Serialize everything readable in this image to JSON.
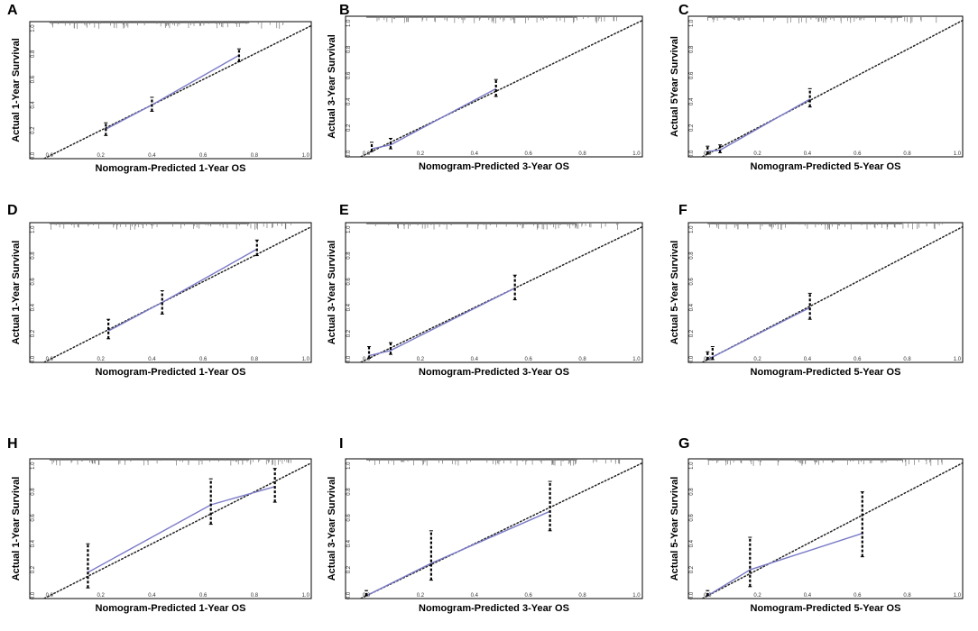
{
  "figure": {
    "description": "Calibration plots of nomogram-predicted vs actual overall survival"
  },
  "colors": {
    "calibration_line": "#7b7bc8",
    "ideal_line": "#222222",
    "error_bar": "#000000",
    "rug": "#777777",
    "axis": "#000000"
  },
  "chart_data": [
    {
      "type": "line",
      "panel": "A",
      "title": "",
      "xlabel": "Nomogram-Predicted 1-Year OS",
      "ylabel": "Actual 1-Year Survival",
      "xlim": [
        0,
        1
      ],
      "ylim": [
        0,
        1
      ],
      "xticks": [
        "0.0",
        "0.2",
        "0.4",
        "0.6",
        "0.8",
        "1.0"
      ],
      "yticks": [
        "0.0",
        "0.2",
        "0.4",
        "0.6",
        "0.8",
        "1.0"
      ],
      "series": [
        {
          "name": "Calibration",
          "x": [
            0.22,
            0.4,
            0.74
          ],
          "y": [
            0.21,
            0.4,
            0.79
          ]
        },
        {
          "name": "Ideal",
          "x": [
            0,
            1
          ],
          "y": [
            0,
            1
          ]
        }
      ],
      "error_bars": [
        {
          "x": 0.22,
          "low": 0.16,
          "high": 0.26
        },
        {
          "x": 0.4,
          "low": 0.35,
          "high": 0.46
        },
        {
          "x": 0.74,
          "low": 0.74,
          "high": 0.84
        }
      ]
    },
    {
      "type": "line",
      "panel": "B",
      "title": "",
      "xlabel": "Nomogram-Predicted 3-Year OS",
      "ylabel": "Actual 3-Year Survival",
      "xlim": [
        0,
        1
      ],
      "ylim": [
        0,
        1
      ],
      "xticks": [
        "0.0",
        "0.2",
        "0.4",
        "0.6",
        "0.8",
        "1.0"
      ],
      "yticks": [
        "0.0",
        "0.2",
        "0.4",
        "0.6",
        "0.8",
        "1.0"
      ],
      "series": [
        {
          "name": "Calibration",
          "x": [
            0.02,
            0.09,
            0.48
          ],
          "y": [
            0.04,
            0.07,
            0.5
          ]
        },
        {
          "name": "Ideal",
          "x": [
            0,
            1
          ],
          "y": [
            0,
            1
          ]
        }
      ],
      "error_bars": [
        {
          "x": 0.02,
          "low": 0.02,
          "high": 0.09
        },
        {
          "x": 0.09,
          "low": 0.04,
          "high": 0.12
        },
        {
          "x": 0.48,
          "low": 0.44,
          "high": 0.57
        }
      ]
    },
    {
      "type": "line",
      "panel": "C",
      "title": "",
      "xlabel": "Nomogram-Predicted 5-Year OS",
      "ylabel": "Actual 5Year Survival",
      "xlim": [
        0,
        1
      ],
      "ylim": [
        0,
        1
      ],
      "xticks": [
        "0.0",
        "0.2",
        "0.4",
        "0.6",
        "0.8",
        "1.0"
      ],
      "yticks": [
        "0.0",
        "0.2",
        "0.4",
        "0.6",
        "0.8",
        "1.0"
      ],
      "series": [
        {
          "name": "Calibration",
          "x": [
            0.0,
            0.05,
            0.41
          ],
          "y": [
            0.02,
            0.03,
            0.42
          ]
        },
        {
          "name": "Ideal",
          "x": [
            0,
            1
          ],
          "y": [
            0,
            1
          ]
        }
      ],
      "error_bars": [
        {
          "x": 0.0,
          "low": 0.0,
          "high": 0.06
        },
        {
          "x": 0.05,
          "low": 0.01,
          "high": 0.07
        },
        {
          "x": 0.41,
          "low": 0.36,
          "high": 0.5
        }
      ]
    },
    {
      "type": "line",
      "panel": "D",
      "title": "",
      "xlabel": "Nomogram-Predicted 1-Year OS",
      "ylabel": "Actual 1-Year Survival",
      "xlim": [
        0,
        1
      ],
      "ylim": [
        0,
        1
      ],
      "xticks": [
        "0.0",
        "0.2",
        "0.4",
        "0.6",
        "0.8",
        "1.0"
      ],
      "yticks": [
        "0.0",
        "0.2",
        "0.4",
        "0.6",
        "0.8",
        "1.0"
      ],
      "series": [
        {
          "name": "Calibration",
          "x": [
            0.23,
            0.44,
            0.81
          ],
          "y": [
            0.22,
            0.44,
            0.85
          ]
        },
        {
          "name": "Ideal",
          "x": [
            0,
            1
          ],
          "y": [
            0,
            1
          ]
        }
      ],
      "error_bars": [
        {
          "x": 0.23,
          "low": 0.16,
          "high": 0.31
        },
        {
          "x": 0.44,
          "low": 0.35,
          "high": 0.53
        },
        {
          "x": 0.81,
          "low": 0.8,
          "high": 0.92
        }
      ]
    },
    {
      "type": "line",
      "panel": "E",
      "title": "",
      "xlabel": "Nomogram-Predicted 3-Year OS",
      "ylabel": "Actual 3-Year Survival",
      "xlim": [
        0,
        1
      ],
      "ylim": [
        0,
        1
      ],
      "xticks": [
        "0.0",
        "0.2",
        "0.4",
        "0.6",
        "0.8",
        "1.0"
      ],
      "yticks": [
        "0.0",
        "0.2",
        "0.4",
        "0.6",
        "0.8",
        "1.0"
      ],
      "series": [
        {
          "name": "Calibration",
          "x": [
            0.01,
            0.09,
            0.55
          ],
          "y": [
            0.03,
            0.07,
            0.55
          ]
        },
        {
          "name": "Ideal",
          "x": [
            0,
            1
          ],
          "y": [
            0,
            1
          ]
        }
      ],
      "error_bars": [
        {
          "x": 0.01,
          "low": 0.01,
          "high": 0.1
        },
        {
          "x": 0.09,
          "low": 0.04,
          "high": 0.13
        },
        {
          "x": 0.55,
          "low": 0.46,
          "high": 0.65
        }
      ]
    },
    {
      "type": "line",
      "panel": "F",
      "title": "",
      "xlabel": "Nomogram-Predicted 5-Year OS",
      "ylabel": "Actual 5-Year Survival",
      "xlim": [
        0,
        1
      ],
      "ylim": [
        0,
        1
      ],
      "xticks": [
        "0.0",
        "0.2",
        "0.4",
        "0.6",
        "0.8",
        "1.0"
      ],
      "yticks": [
        "0.0",
        "0.2",
        "0.4",
        "0.6",
        "0.8",
        "1.0"
      ],
      "series": [
        {
          "name": "Calibration",
          "x": [
            0.0,
            0.02,
            0.41
          ],
          "y": [
            0.0,
            0.02,
            0.4
          ]
        },
        {
          "name": "Ideal",
          "x": [
            0,
            1
          ],
          "y": [
            0,
            1
          ]
        }
      ],
      "error_bars": [
        {
          "x": 0.0,
          "low": 0.0,
          "high": 0.06
        },
        {
          "x": 0.02,
          "low": 0.0,
          "high": 0.1
        },
        {
          "x": 0.41,
          "low": 0.31,
          "high": 0.51
        }
      ]
    },
    {
      "type": "line",
      "panel": "H",
      "title": "",
      "xlabel": "Nomogram-Predicted 1-Year OS",
      "ylabel": "Actual 1-Year Survival",
      "xlim": [
        0,
        1
      ],
      "ylim": [
        0,
        1
      ],
      "xticks": [
        "0.0",
        "0.2",
        "0.4",
        "0.6",
        "0.8",
        "1.0"
      ],
      "yticks": [
        "0.0",
        "0.2",
        "0.4",
        "0.6",
        "0.8",
        "1.0"
      ],
      "series": [
        {
          "name": "Calibration",
          "x": [
            0.15,
            0.63,
            0.88
          ],
          "y": [
            0.18,
            0.7,
            0.84
          ]
        },
        {
          "name": "Ideal",
          "x": [
            0,
            1
          ],
          "y": [
            0,
            1
          ]
        }
      ],
      "error_bars": [
        {
          "x": 0.15,
          "low": 0.06,
          "high": 0.4
        },
        {
          "x": 0.63,
          "low": 0.55,
          "high": 0.9
        },
        {
          "x": 0.88,
          "low": 0.72,
          "high": 0.98
        }
      ]
    },
    {
      "type": "line",
      "panel": "I",
      "title": "",
      "xlabel": "Nomogram-Predicted 3-Year OS",
      "ylabel": "Actual 3-Year Survival",
      "xlim": [
        0,
        1
      ],
      "ylim": [
        0,
        1
      ],
      "xticks": [
        "0.0",
        "0.2",
        "0.4",
        "0.6",
        "0.8",
        "1.0"
      ],
      "yticks": [
        "0.0",
        "0.2",
        "0.4",
        "0.6",
        "0.8",
        "1.0"
      ],
      "series": [
        {
          "name": "Calibration",
          "x": [
            0.0,
            0.24,
            0.68
          ],
          "y": [
            0.0,
            0.25,
            0.65
          ]
        },
        {
          "name": "Ideal",
          "x": [
            0,
            1
          ],
          "y": [
            0,
            1
          ]
        }
      ],
      "error_bars": [
        {
          "x": 0.0,
          "low": 0.0,
          "high": 0.04
        },
        {
          "x": 0.24,
          "low": 0.12,
          "high": 0.5
        },
        {
          "x": 0.68,
          "low": 0.5,
          "high": 0.88
        }
      ]
    },
    {
      "type": "line",
      "panel": "G",
      "title": "",
      "xlabel": "Nomogram-Predicted 5-Year OS",
      "ylabel": "Actual 5-Year Survival",
      "xlim": [
        0,
        1
      ],
      "ylim": [
        0,
        1
      ],
      "xticks": [
        "0.0",
        "0.2",
        "0.4",
        "0.6",
        "0.8",
        "1.0"
      ],
      "yticks": [
        "0.0",
        "0.2",
        "0.4",
        "0.6",
        "0.8",
        "1.0"
      ],
      "series": [
        {
          "name": "Calibration",
          "x": [
            0.0,
            0.17,
            0.62
          ],
          "y": [
            0.0,
            0.2,
            0.48
          ]
        },
        {
          "name": "Ideal",
          "x": [
            0,
            1
          ],
          "y": [
            0,
            1
          ]
        }
      ],
      "error_bars": [
        {
          "x": 0.0,
          "low": 0.0,
          "high": 0.04
        },
        {
          "x": 0.17,
          "low": 0.07,
          "high": 0.45
        },
        {
          "x": 0.62,
          "low": 0.3,
          "high": 0.8
        }
      ]
    }
  ]
}
